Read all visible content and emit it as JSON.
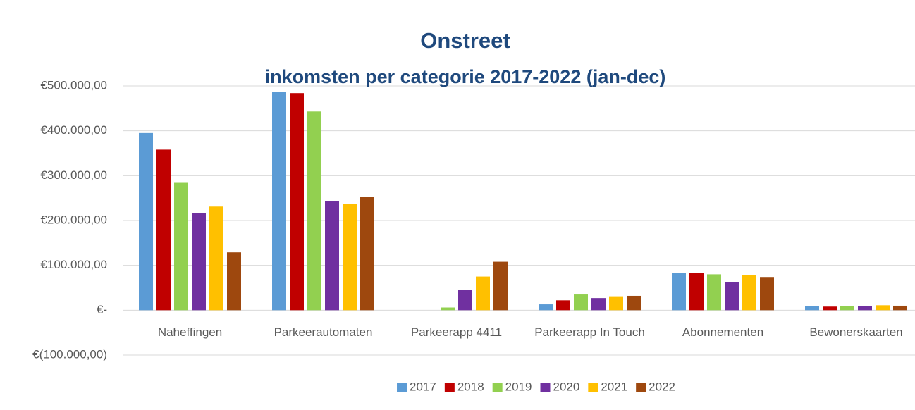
{
  "chart_data": {
    "type": "bar",
    "title": "Onstreet",
    "subtitle": "inkomsten per categorie 2017-2022 (jan-dec)",
    "categories": [
      "Naheffingen",
      "Parkeerautomaten",
      "Parkeerapp 4411",
      "Parkeerapp In Touch",
      "Abonnementen",
      "Bewonerskaarten"
    ],
    "series": [
      {
        "name": "2017",
        "color": "#5b9bd5",
        "values": [
          395000,
          487000,
          0,
          13000,
          83000,
          9000
        ]
      },
      {
        "name": "2018",
        "color": "#c00000",
        "values": [
          358000,
          484000,
          0,
          22000,
          83000,
          8000
        ]
      },
      {
        "name": "2019",
        "color": "#92d050",
        "values": [
          284000,
          443000,
          6000,
          35000,
          80000,
          9000
        ]
      },
      {
        "name": "2020",
        "color": "#7030a0",
        "values": [
          217000,
          243000,
          46000,
          27000,
          63000,
          9000
        ]
      },
      {
        "name": "2021",
        "color": "#ffc000",
        "values": [
          231000,
          237000,
          75000,
          31000,
          78000,
          11000
        ]
      },
      {
        "name": "2022",
        "color": "#9e480e",
        "values": [
          129000,
          253000,
          108000,
          32000,
          74000,
          10000
        ]
      }
    ],
    "ylim": [
      -100000,
      500000
    ],
    "yticks": [
      {
        "value": -100000,
        "label": "€(100.000,00)"
      },
      {
        "value": 0,
        "label": "€-"
      },
      {
        "value": 100000,
        "label": "€100.000,00"
      },
      {
        "value": 200000,
        "label": "€200.000,00"
      },
      {
        "value": 300000,
        "label": "€300.000,00"
      },
      {
        "value": 400000,
        "label": "€400.000,00"
      },
      {
        "value": 500000,
        "label": "€500.000,00"
      }
    ],
    "grid": true,
    "legend": "bottom"
  }
}
